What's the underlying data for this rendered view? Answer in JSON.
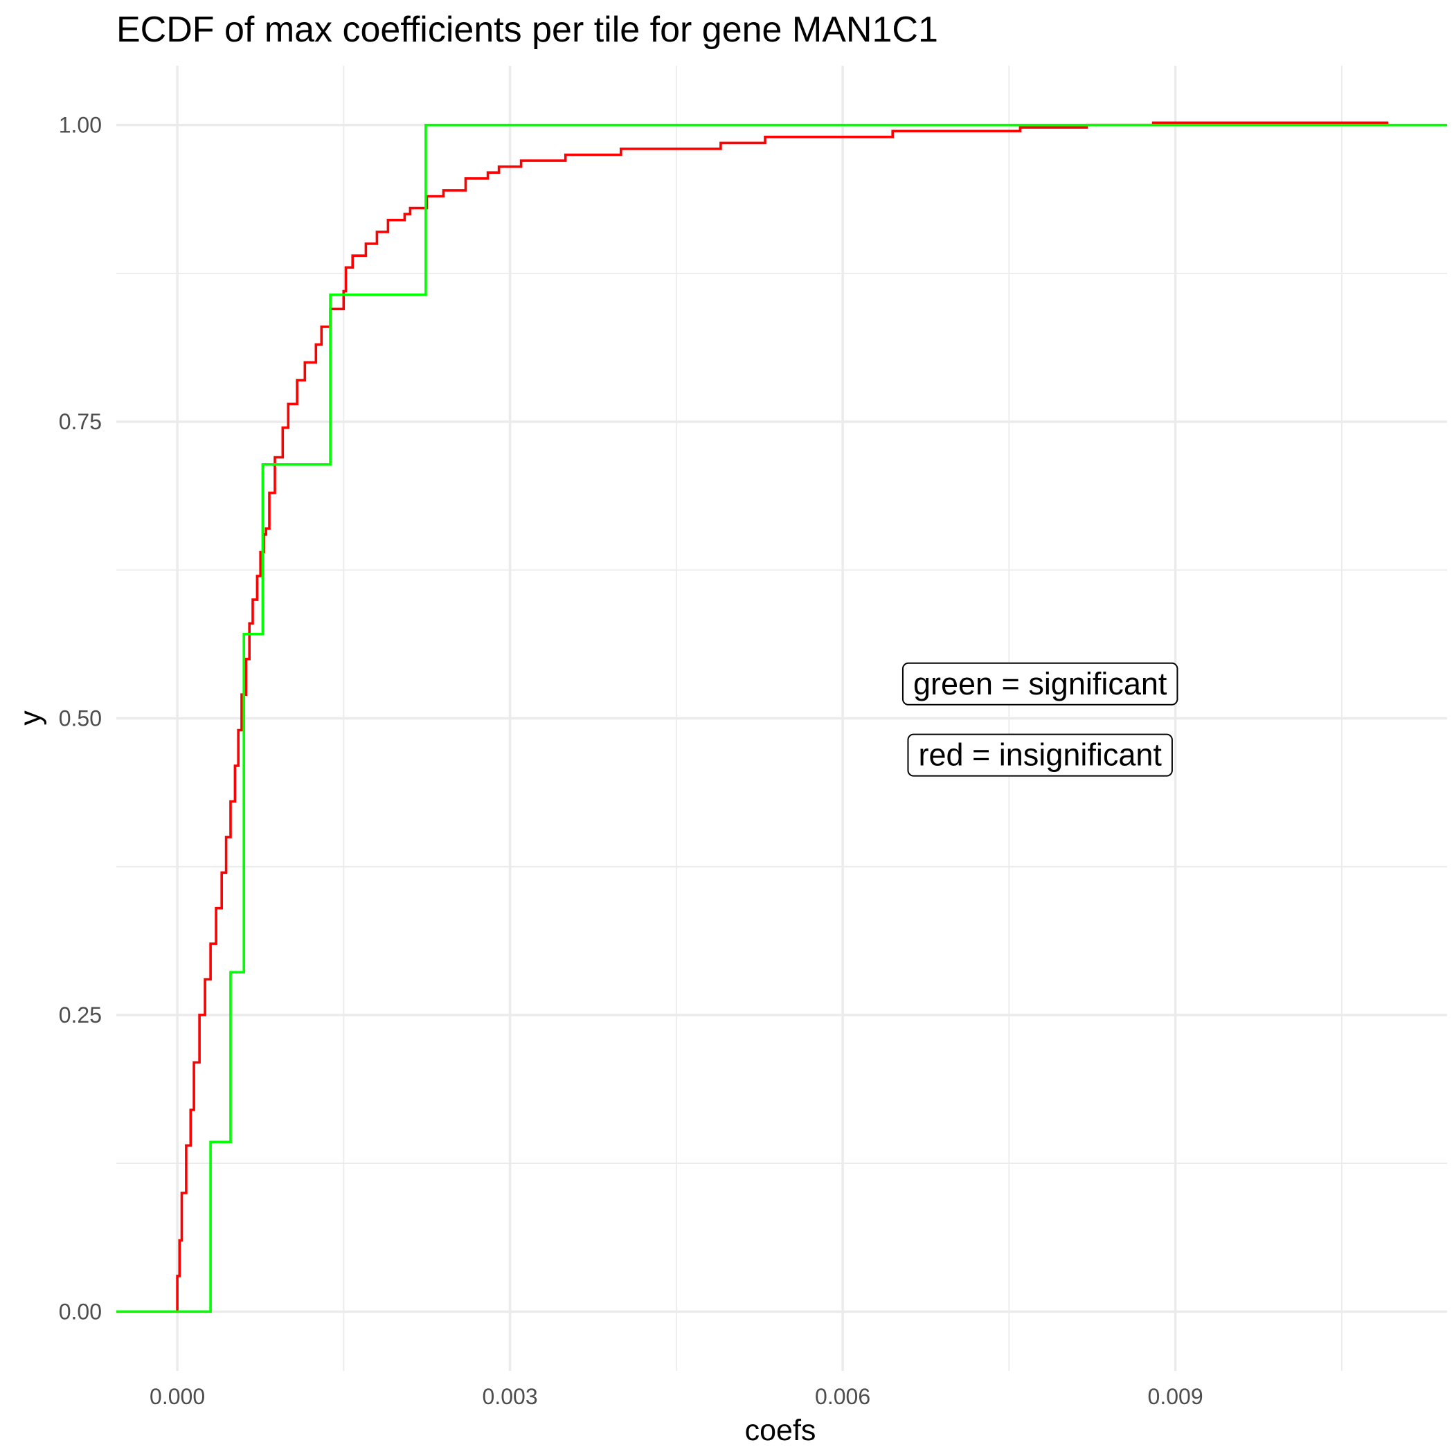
{
  "chart_data": {
    "type": "line",
    "step": true,
    "title": "ECDF of max coefficients per tile for gene MAN1C1",
    "xlabel": "coefs",
    "ylabel": "y",
    "xlim": [
      -0.00055,
      0.01145
    ],
    "ylim": [
      -0.05,
      1.05
    ],
    "grid": true,
    "x_ticks": [
      0.0,
      0.003,
      0.006,
      0.009
    ],
    "x_tick_labels": [
      "0.000",
      "0.003",
      "0.006",
      "0.009"
    ],
    "x_minor_ticks": [
      0.0015,
      0.0045,
      0.0075,
      0.0105
    ],
    "y_ticks": [
      0.0,
      0.25,
      0.5,
      0.75,
      1.0
    ],
    "y_tick_labels": [
      "0.00",
      "0.25",
      "0.50",
      "0.75",
      "1.00"
    ],
    "y_minor_ticks": [
      0.125,
      0.375,
      0.625,
      0.875
    ],
    "annotations": [
      {
        "text": "green = significant",
        "x": 0.00778,
        "y": 0.529
      },
      {
        "text": "red = insignificant",
        "x": 0.00778,
        "y": 0.469
      }
    ],
    "series": [
      {
        "color": "#ff0000",
        "points": [
          [
            -0.00055,
            0.0
          ],
          [
            0.0,
            0.0
          ],
          [
            0.0,
            0.03
          ],
          [
            2e-05,
            0.06
          ],
          [
            4e-05,
            0.1
          ],
          [
            8e-05,
            0.14
          ],
          [
            0.00012,
            0.17
          ],
          [
            0.00015,
            0.21
          ],
          [
            0.0002,
            0.25
          ],
          [
            0.00025,
            0.28
          ],
          [
            0.0003,
            0.31
          ],
          [
            0.00035,
            0.34
          ],
          [
            0.0004,
            0.37
          ],
          [
            0.00044,
            0.4
          ],
          [
            0.00048,
            0.43
          ],
          [
            0.00052,
            0.46
          ],
          [
            0.00055,
            0.49
          ],
          [
            0.00058,
            0.52
          ],
          [
            0.00062,
            0.55
          ],
          [
            0.00065,
            0.58
          ],
          [
            0.00068,
            0.6
          ],
          [
            0.00072,
            0.62
          ],
          [
            0.00075,
            0.64
          ],
          [
            0.00078,
            0.655
          ],
          [
            0.0008,
            0.66
          ],
          [
            0.00083,
            0.69
          ],
          [
            0.00088,
            0.72
          ],
          [
            0.00095,
            0.745
          ],
          [
            0.001,
            0.765
          ],
          [
            0.00108,
            0.785
          ],
          [
            0.00115,
            0.8
          ],
          [
            0.00125,
            0.815
          ],
          [
            0.0013,
            0.83
          ],
          [
            0.00138,
            0.845
          ],
          [
            0.0015,
            0.86
          ],
          [
            0.00152,
            0.88
          ],
          [
            0.00158,
            0.89
          ],
          [
            0.0017,
            0.9
          ],
          [
            0.0018,
            0.91
          ],
          [
            0.0019,
            0.92
          ],
          [
            0.00205,
            0.925
          ],
          [
            0.0021,
            0.93
          ],
          [
            0.00225,
            0.94
          ],
          [
            0.0024,
            0.945
          ],
          [
            0.0026,
            0.955
          ],
          [
            0.0028,
            0.96
          ],
          [
            0.0029,
            0.965
          ],
          [
            0.0031,
            0.97
          ],
          [
            0.0035,
            0.975
          ],
          [
            0.004,
            0.98
          ],
          [
            0.0049,
            0.985
          ],
          [
            0.0053,
            0.99
          ],
          [
            0.0064,
            0.99
          ],
          [
            0.00645,
            0.995
          ],
          [
            0.00755,
            0.995
          ],
          [
            0.0076,
            0.998
          ],
          [
            0.0082,
            1.0
          ],
          [
            0.0088,
            1.002
          ],
          [
            0.01092,
            1.002
          ]
        ]
      },
      {
        "color": "#00ff00",
        "points": [
          [
            -0.00055,
            0.0
          ],
          [
            0.0003,
            0.0
          ],
          [
            0.0003,
            0.143
          ],
          [
            0.00048,
            0.143
          ],
          [
            0.00048,
            0.286
          ],
          [
            0.0006,
            0.286
          ],
          [
            0.0006,
            0.571
          ],
          [
            0.00077,
            0.571
          ],
          [
            0.00077,
            0.714
          ],
          [
            0.00138,
            0.714
          ],
          [
            0.00138,
            0.857
          ],
          [
            0.00224,
            0.857
          ],
          [
            0.00224,
            1.0
          ],
          [
            0.01145,
            1.0
          ]
        ]
      }
    ]
  }
}
